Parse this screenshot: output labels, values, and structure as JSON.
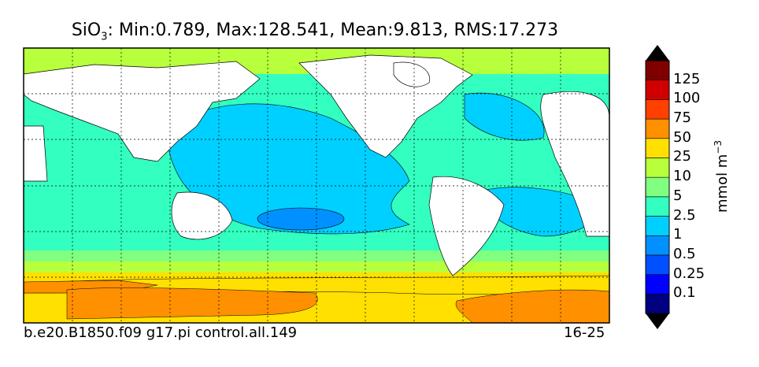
{
  "map": {
    "title_symbol": "SiO",
    "title_subscript": "3",
    "title_stats": ": Min:0.789, Max:128.541, Mean:9.813, RMS:17.273",
    "footer_left": "b.e20.B1850.f09 g17.pi control.all.149",
    "footer_right": "16-25"
  },
  "colorbar": {
    "units_base": "mmol m",
    "units_exponent": "−3",
    "tick_labels": [
      "125",
      "100",
      "75",
      "50",
      "25",
      "10",
      "5",
      "2.5",
      "1",
      "0.5",
      "0.25",
      "0.1"
    ],
    "colors": [
      "#000080",
      "#0000ff",
      "#0050ff",
      "#0090ff",
      "#00d0ff",
      "#33ffc0",
      "#80ff80",
      "#b8ff3c",
      "#ffe000",
      "#ff9000",
      "#ff4000",
      "#d00000",
      "#800000"
    ],
    "extend": "both"
  }
}
